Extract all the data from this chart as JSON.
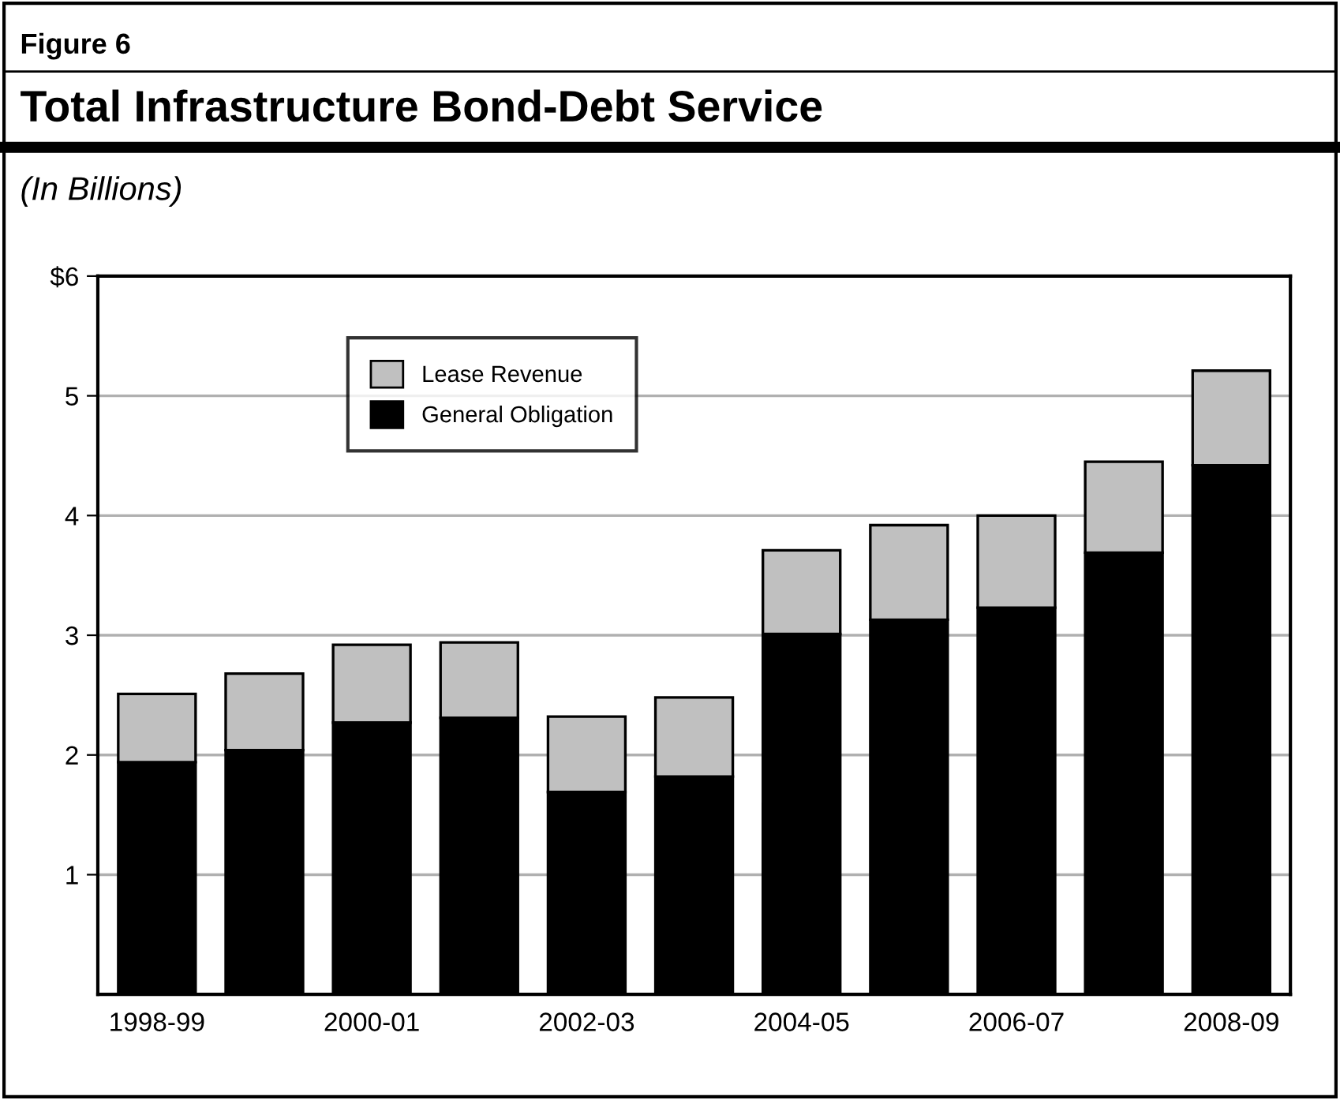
{
  "chart_data": {
    "type": "bar",
    "title": "Total Infrastructure Bond-Debt Service",
    "subtitle": "(In Billions)",
    "annotations": [
      "Figure 6"
    ],
    "categories": [
      "1998-99",
      null,
      "2000-01",
      null,
      "2002-03",
      null,
      "2004-05",
      null,
      "2006-07",
      null,
      "2008-09"
    ],
    "stacked": true,
    "series": [
      {
        "name": "General Obligation",
        "color": "#000000",
        "values": [
          1.94,
          2.04,
          2.27,
          2.31,
          1.69,
          1.82,
          3.01,
          3.13,
          3.23,
          3.69,
          4.42
        ]
      },
      {
        "name": "Lease Revenue",
        "color": "#c0c0c0",
        "values": [
          0.57,
          0.64,
          0.65,
          0.63,
          0.63,
          0.66,
          0.7,
          0.79,
          0.77,
          0.76,
          0.79
        ]
      }
    ],
    "ylim": [
      0,
      6
    ],
    "yticks": [
      1,
      2,
      3,
      4,
      5,
      {
        "value": 6,
        "label": "$6"
      }
    ],
    "grid": "y",
    "legend": "top left"
  }
}
